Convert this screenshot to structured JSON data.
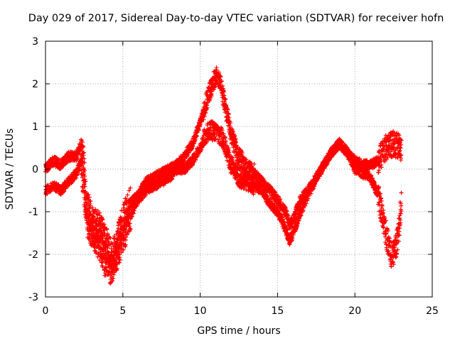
{
  "chart_data": {
    "type": "scatter",
    "title": "Day 029 of 2017, Sidereal Day-to-day VTEC variation (SDTVAR) for receiver hofn",
    "xlabel": "GPS time / hours",
    "ylabel": "SDTVAR / TECUs",
    "xlim": [
      0,
      25
    ],
    "ylim": [
      -3,
      3
    ],
    "xticks": [
      0,
      5,
      10,
      15,
      20,
      25
    ],
    "xtick_labels": [
      "0",
      "5",
      "10",
      "15",
      "20",
      "25"
    ],
    "yticks": [
      -3,
      -2,
      -1,
      0,
      1,
      2,
      3
    ],
    "ytick_labels": [
      "-3",
      "-2",
      "-1",
      "0",
      "1",
      "2",
      "3"
    ],
    "grid": true,
    "marker": "plus",
    "series": [
      {
        "name": "SDTVAR",
        "color": "#ff0000",
        "x_range": [
          0,
          23
        ],
        "step": 0.0083,
        "track_a": [
          [
            0.0,
            0.0
          ],
          [
            0.5,
            0.2
          ],
          [
            1.0,
            0.1
          ],
          [
            1.5,
            0.3
          ],
          [
            2.0,
            0.3
          ],
          [
            2.3,
            0.6
          ],
          [
            2.5,
            0.0
          ],
          [
            2.6,
            -0.8
          ],
          [
            3.0,
            -1.2
          ],
          [
            3.5,
            -1.4
          ],
          [
            4.0,
            -1.8
          ],
          [
            4.3,
            -2.1
          ],
          [
            4.6,
            -1.8
          ],
          [
            5.0,
            -1.2
          ],
          [
            5.5,
            -0.8
          ],
          [
            6.0,
            -0.6
          ],
          [
            6.5,
            -0.3
          ],
          [
            7.0,
            -0.2
          ],
          [
            7.5,
            -0.1
          ],
          [
            8.0,
            0.0
          ],
          [
            8.5,
            0.1
          ],
          [
            9.0,
            0.3
          ],
          [
            9.5,
            0.6
          ],
          [
            10.0,
            1.1
          ],
          [
            10.5,
            1.7
          ],
          [
            10.8,
            2.0
          ],
          [
            11.0,
            2.2
          ],
          [
            11.3,
            2.0
          ],
          [
            11.6,
            1.5
          ],
          [
            12.0,
            0.8
          ],
          [
            12.5,
            0.3
          ],
          [
            13.0,
            0.0
          ],
          [
            13.5,
            -0.1
          ],
          [
            14.0,
            -0.3
          ],
          [
            14.5,
            -0.5
          ],
          [
            15.0,
            -0.7
          ],
          [
            15.5,
            -1.0
          ],
          [
            15.8,
            -1.3
          ],
          [
            16.0,
            -1.2
          ],
          [
            16.5,
            -0.7
          ],
          [
            17.0,
            -0.5
          ],
          [
            17.5,
            -0.2
          ],
          [
            18.0,
            0.1
          ],
          [
            18.5,
            0.4
          ],
          [
            19.0,
            0.6
          ],
          [
            19.5,
            0.4
          ],
          [
            20.0,
            0.2
          ],
          [
            20.5,
            0.1
          ],
          [
            21.0,
            0.1
          ],
          [
            21.5,
            0.2
          ],
          [
            22.0,
            0.5
          ],
          [
            22.5,
            0.6
          ],
          [
            23.0,
            0.5
          ]
        ],
        "track_b": [
          [
            0.0,
            -0.5
          ],
          [
            0.5,
            -0.4
          ],
          [
            1.0,
            -0.5
          ],
          [
            1.5,
            -0.3
          ],
          [
            2.0,
            -0.1
          ],
          [
            2.3,
            0.2
          ],
          [
            2.5,
            -0.5
          ],
          [
            2.7,
            -1.2
          ],
          [
            3.0,
            -1.5
          ],
          [
            3.5,
            -1.8
          ],
          [
            4.0,
            -2.3
          ],
          [
            4.3,
            -2.4
          ],
          [
            4.6,
            -2.0
          ],
          [
            5.0,
            -1.6
          ],
          [
            5.5,
            -1.1
          ],
          [
            6.0,
            -0.7
          ],
          [
            6.5,
            -0.5
          ],
          [
            7.0,
            -0.4
          ],
          [
            7.5,
            -0.3
          ],
          [
            8.0,
            -0.2
          ],
          [
            8.5,
            0.0
          ],
          [
            9.0,
            0.0
          ],
          [
            9.5,
            0.2
          ],
          [
            10.0,
            0.5
          ],
          [
            10.5,
            0.9
          ],
          [
            11.0,
            0.9
          ],
          [
            11.5,
            0.7
          ],
          [
            12.0,
            0.1
          ],
          [
            12.5,
            -0.2
          ],
          [
            13.0,
            -0.3
          ],
          [
            13.5,
            -0.4
          ],
          [
            14.0,
            -0.5
          ],
          [
            14.5,
            -0.8
          ],
          [
            15.0,
            -1.0
          ],
          [
            15.5,
            -1.4
          ],
          [
            15.8,
            -1.7
          ],
          [
            16.0,
            -1.5
          ],
          [
            16.5,
            -1.0
          ],
          [
            17.0,
            -0.6
          ],
          [
            17.5,
            -0.2
          ],
          [
            18.0,
            0.1
          ],
          [
            18.5,
            0.4
          ],
          [
            19.0,
            0.6
          ],
          [
            19.5,
            0.4
          ],
          [
            20.0,
            0.0
          ],
          [
            20.5,
            -0.1
          ],
          [
            21.0,
            -0.2
          ],
          [
            21.5,
            -0.6
          ],
          [
            22.0,
            -1.5
          ],
          [
            22.3,
            -2.0
          ],
          [
            22.5,
            -2.0
          ],
          [
            22.8,
            -1.6
          ],
          [
            23.0,
            -0.7
          ]
        ]
      }
    ]
  }
}
